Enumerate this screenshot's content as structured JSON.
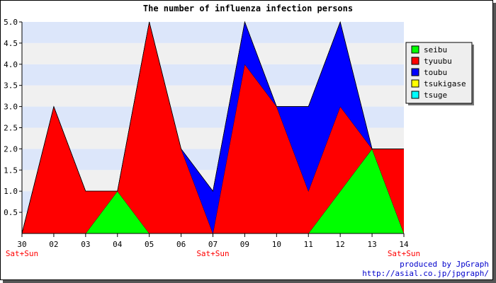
{
  "chart_data": {
    "type": "area",
    "stacked": true,
    "title": "The number of influenza infection persons",
    "categories": [
      "30",
      "02",
      "03",
      "04",
      "05",
      "06",
      "07",
      "09",
      "10",
      "11",
      "12",
      "13",
      "14"
    ],
    "category_notes": [
      "Sat+Sun",
      "",
      "",
      "",
      "",
      "",
      "Sat+Sun",
      "",
      "",
      "",
      "",
      "",
      "Sat+Sun"
    ],
    "y_ticks": [
      "0.5",
      "1.0",
      "1.5",
      "2.0",
      "2.5",
      "3.0",
      "3.5",
      "4.0",
      "4.5",
      "5.0"
    ],
    "ylim": [
      0,
      5
    ],
    "grid": "horizontal alternating bands",
    "legend_position": "right",
    "series": [
      {
        "name": "seibu",
        "color": "#00ff00",
        "values": [
          0,
          0,
          0,
          1,
          0,
          0,
          0,
          0,
          0,
          0,
          1,
          2,
          0
        ]
      },
      {
        "name": "tyuubu",
        "color": "#ff0000",
        "values": [
          0,
          3,
          1,
          0,
          5,
          2,
          0,
          4,
          3,
          1,
          2,
          0,
          2
        ]
      },
      {
        "name": "toubu",
        "color": "#0000ff",
        "values": [
          0,
          0,
          0,
          0,
          0,
          0,
          1,
          1,
          0,
          2,
          2,
          0,
          0
        ]
      },
      {
        "name": "tsukigase",
        "color": "#ffff00",
        "values": [
          0,
          0,
          0,
          0,
          0,
          0,
          0,
          0,
          0,
          0,
          0,
          0,
          0
        ]
      },
      {
        "name": "tsuge",
        "color": "#00ffff",
        "values": [
          0,
          0,
          0,
          0,
          0,
          0,
          0,
          0,
          0,
          0,
          0,
          0,
          0
        ]
      }
    ],
    "colors": {
      "band_light": "#f0f0f0",
      "band_blue": "#dce6fa",
      "note": "#ff0000",
      "credit": "#0000cc"
    }
  },
  "credit": {
    "line1": "produced by JpGraph",
    "line2": "http://asial.co.jp/jpgraph/"
  }
}
